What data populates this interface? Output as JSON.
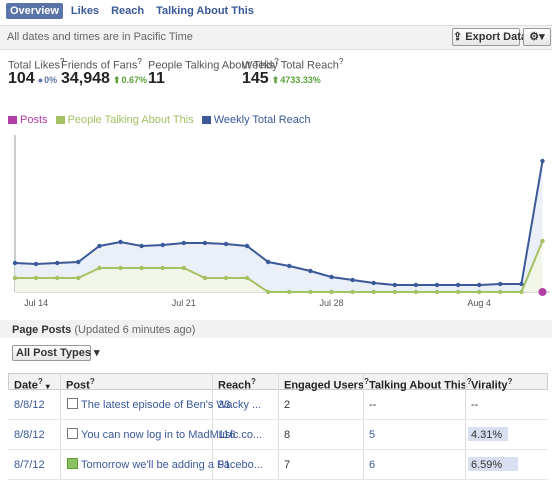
{
  "tabs": [
    "Overview",
    "Likes",
    "Reach",
    "Talking About This"
  ],
  "help": "?",
  "timezone_note": "All dates and times are in Pacific Time",
  "export_button": "Export Data",
  "stats": [
    {
      "label": "Total Likes",
      "value": "104",
      "change": "0%",
      "trend": "flat"
    },
    {
      "label": "Friends of Fans",
      "value": "34,948",
      "change": "0.67%",
      "trend": "up"
    },
    {
      "label": "People Talking About This",
      "value": "11"
    },
    {
      "label": "Weekly Total Reach",
      "value": "145",
      "change": "4733.33%",
      "trend": "up"
    }
  ],
  "chart_data": {
    "type": "line",
    "categories": [
      null,
      "Jul 14",
      null,
      null,
      null,
      null,
      null,
      null,
      "Jul 21",
      null,
      null,
      null,
      null,
      null,
      null,
      "Jul 28",
      null,
      null,
      null,
      null,
      null,
      null,
      "Aug 4",
      null,
      null,
      null
    ],
    "series": [
      {
        "name": "Posts",
        "color": "#b03fa6",
        "values": [
          null,
          null,
          null,
          null,
          null,
          null,
          null,
          null,
          null,
          null,
          null,
          null,
          null,
          null,
          null,
          null,
          null,
          null,
          null,
          null,
          null,
          null,
          null,
          null,
          null,
          1
        ]
      },
      {
        "name": "People Talking About This",
        "color": "#a4c164",
        "values": [
          14,
          14,
          14,
          14,
          24,
          24,
          24,
          24,
          24,
          14,
          14,
          14,
          0,
          0,
          0,
          0,
          0,
          0,
          0,
          0,
          0,
          0,
          0,
          0,
          0,
          51
        ]
      },
      {
        "name": "Weekly Total Reach",
        "color": "#3b5998",
        "values": [
          29,
          28,
          29,
          30,
          46,
          50,
          46,
          47,
          49,
          49,
          48,
          46,
          30,
          26,
          21,
          15,
          12,
          9,
          7,
          7,
          7,
          7,
          7,
          8,
          8,
          131
        ]
      }
    ],
    "ylim": [
      0,
      160
    ],
    "legend": "top-left"
  },
  "posts_section": {
    "title": "Page Posts",
    "updated": "(Updated 6 minutes ago)",
    "filter": "All Post Types"
  },
  "table": {
    "columns": [
      "Date",
      "Post",
      "Reach",
      "Engaged Users",
      "Talking About This",
      "Virality"
    ],
    "rows": [
      [
        "8/8/12",
        "The latest episode of Ben's Wacky ...",
        "33",
        "2",
        "--",
        "--"
      ],
      [
        "8/8/12",
        "You can now log in to MadMusic.co...",
        "116",
        "8",
        "5",
        "4.31%"
      ],
      [
        "8/7/12",
        "Tomorrow we'll be adding a Facebo...",
        "91",
        "7",
        "6",
        "6.59%"
      ]
    ]
  }
}
